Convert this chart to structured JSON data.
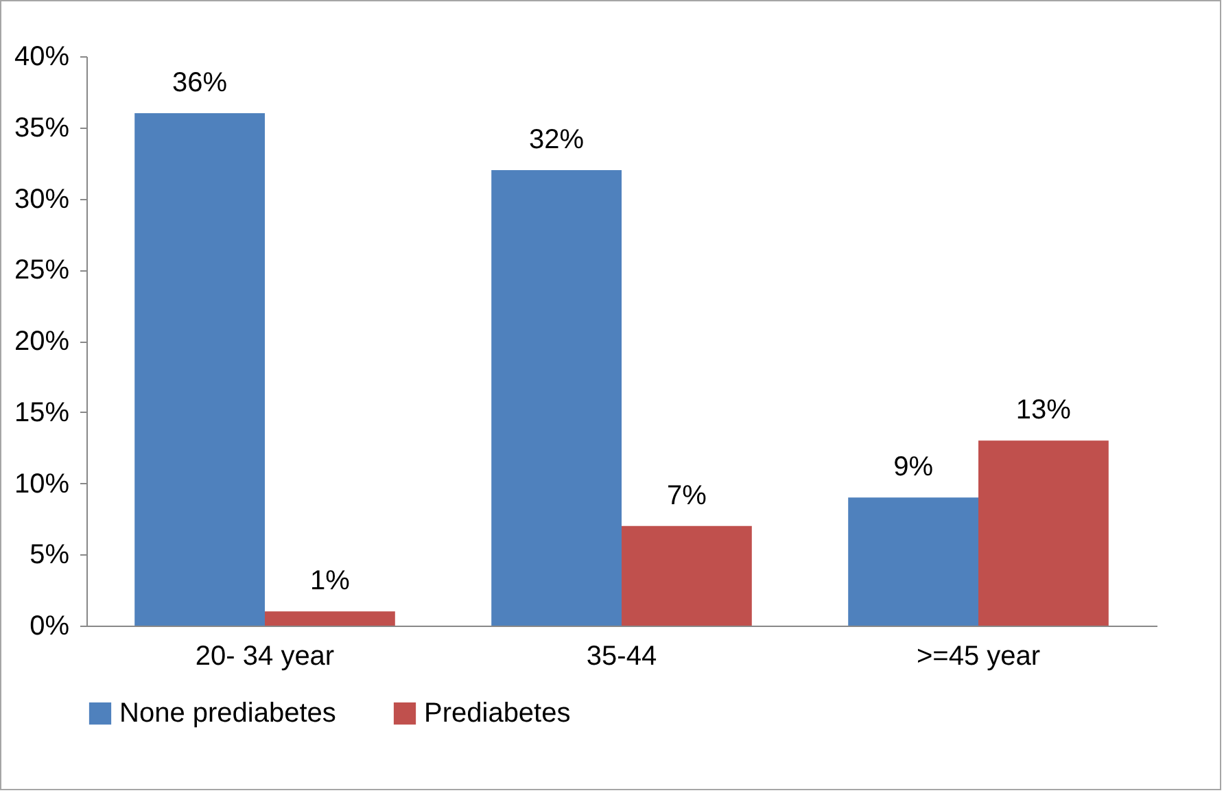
{
  "chart_data": {
    "type": "bar",
    "categories": [
      "20- 34 year",
      "35-44",
      ">=45 year"
    ],
    "series": [
      {
        "name": "None prediabetes",
        "color": "#4f81bd",
        "values": [
          36,
          32,
          9
        ],
        "value_labels": [
          "36%",
          "32%",
          "9%"
        ]
      },
      {
        "name": "Prediabetes",
        "color": "#c0504d",
        "values": [
          1,
          7,
          13
        ],
        "value_labels": [
          "1%",
          "7%",
          "13%"
        ]
      }
    ],
    "ylim": [
      0,
      40
    ],
    "yticks": [
      {
        "value": 0,
        "label": "0%"
      },
      {
        "value": 5,
        "label": "5%"
      },
      {
        "value": 10,
        "label": "10%"
      },
      {
        "value": 15,
        "label": "15%"
      },
      {
        "value": 20,
        "label": "20%"
      },
      {
        "value": 25,
        "label": "25%"
      },
      {
        "value": 30,
        "label": "30%"
      },
      {
        "value": 35,
        "label": "35%"
      },
      {
        "value": 40,
        "label": "40%"
      }
    ],
    "grid": false,
    "legend": "bottom"
  }
}
